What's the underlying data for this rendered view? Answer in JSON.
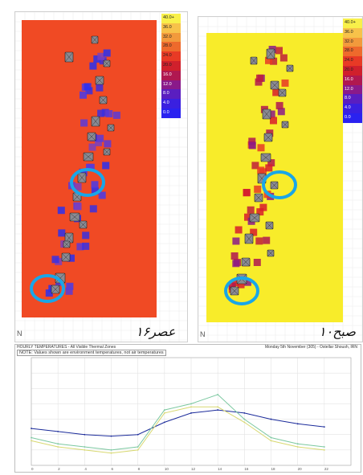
{
  "left_panel": {
    "legend": [
      "40.0+",
      "36.0",
      "32.0",
      "28.0",
      "24.0",
      "20.0",
      "16.0",
      "12.0",
      "8.0",
      "4.0",
      "0.0"
    ],
    "legend_colors": [
      "#f8f04a",
      "#f7c24a",
      "#f29a3c",
      "#ee6a2c",
      "#e83a25",
      "#d0202c",
      "#b01850",
      "#8a1a8a",
      "#5a1ec0",
      "#3a20e0",
      "#2a22f0"
    ],
    "background_color": "#f04a24",
    "caption": "۱۶عصر",
    "north_label": "N"
  },
  "right_panel": {
    "legend": [
      "40.0+",
      "36.0",
      "32.0",
      "28.0",
      "24.0",
      "20.0",
      "16.0",
      "12.0",
      "8.0",
      "4.0",
      "0.0"
    ],
    "legend_colors": [
      "#f8f04a",
      "#f7c24a",
      "#f29a3c",
      "#ee6a2c",
      "#e83a25",
      "#d0202c",
      "#b01850",
      "#8a1a8a",
      "#5a1ec0",
      "#3a20e0",
      "#2a22f0"
    ],
    "background_color": "#f8ec2a",
    "caption": "۱۰صبح",
    "north_label": "N"
  },
  "chart": {
    "header": "HOURLY TEMPERATURES - All Visible Thermal Zones",
    "date": "Monday 5th November (305) - Ostellar Shoush, IRN",
    "note": "NOTE: Values shown are environment temperatures, not air temperatures",
    "chart_data": {
      "type": "line",
      "x": [
        0,
        2,
        4,
        6,
        8,
        10,
        12,
        14,
        16,
        18,
        20,
        22
      ],
      "xticks": [
        "0",
        "2",
        "4",
        "6",
        "8",
        "10",
        "12",
        "14",
        "16",
        "18",
        "20",
        "22"
      ],
      "series": [
        {
          "color": "#1a2a9a",
          "values": [
            12,
            11,
            10,
            9.5,
            10,
            14,
            17,
            18,
            17,
            15,
            13.5,
            12.5
          ]
        },
        {
          "color": "#d8d870",
          "values": [
            8,
            6,
            5,
            4,
            5,
            17,
            19,
            19,
            14,
            8,
            6,
            5
          ]
        },
        {
          "color": "#7bc8a0",
          "values": [
            9,
            7,
            6,
            5,
            6,
            18,
            20,
            23,
            15,
            9,
            7,
            6
          ]
        }
      ],
      "ylim": [
        0,
        35
      ]
    }
  }
}
